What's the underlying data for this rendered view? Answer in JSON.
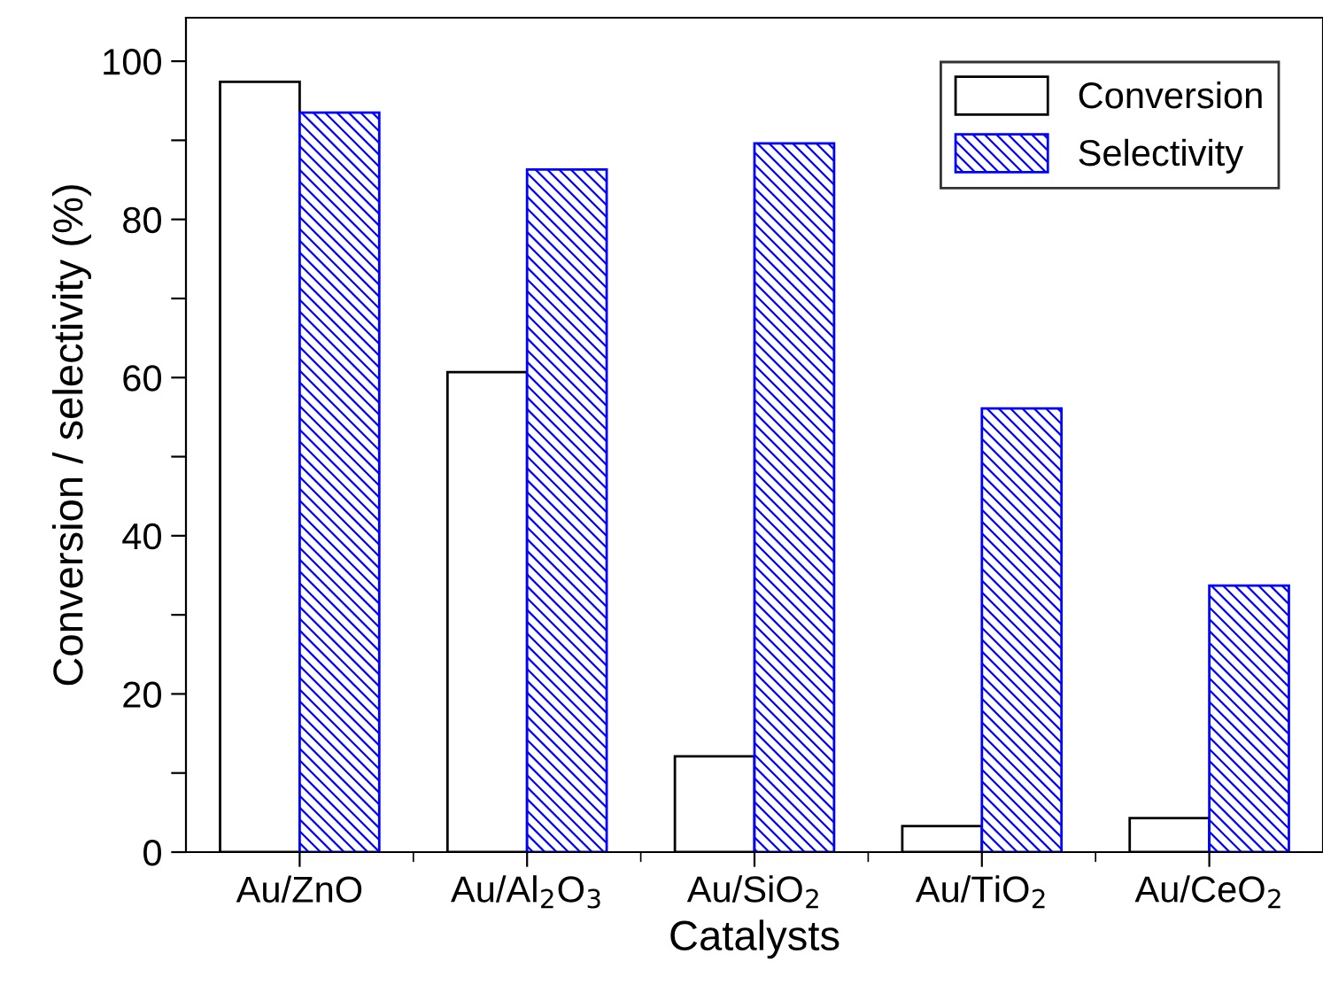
{
  "chart_data": {
    "type": "bar",
    "xlabel": "Catalysts",
    "ylabel": "Conversion / selectivity (%)",
    "categories": [
      "Au/ZnO",
      "Au/Al$_{2}$O$_{3}$",
      "Au/SiO$_{2}$",
      "Au/TiO$_{2}$",
      "Au/CeO$_{2}$"
    ],
    "series": [
      {
        "name": "Conversion",
        "color": "#000000",
        "values": [
          97.4,
          60.7,
          12.1,
          3.3,
          4.3
        ]
      },
      {
        "name": "Selectivity",
        "color": "#0000ff",
        "values": [
          93.5,
          86.3,
          89.6,
          56.1,
          33.7
        ]
      }
    ],
    "ylim": [
      0,
      105.5
    ],
    "yticks": [
      0,
      {
        "value": 10,
        "label": null
      },
      20,
      {
        "value": 30,
        "label": null
      },
      40,
      {
        "value": 50,
        "label": null
      },
      60,
      {
        "value": 70,
        "label": null
      },
      80,
      {
        "value": 90,
        "label": null
      },
      100
    ],
    "grid": false,
    "legend": "top right"
  }
}
